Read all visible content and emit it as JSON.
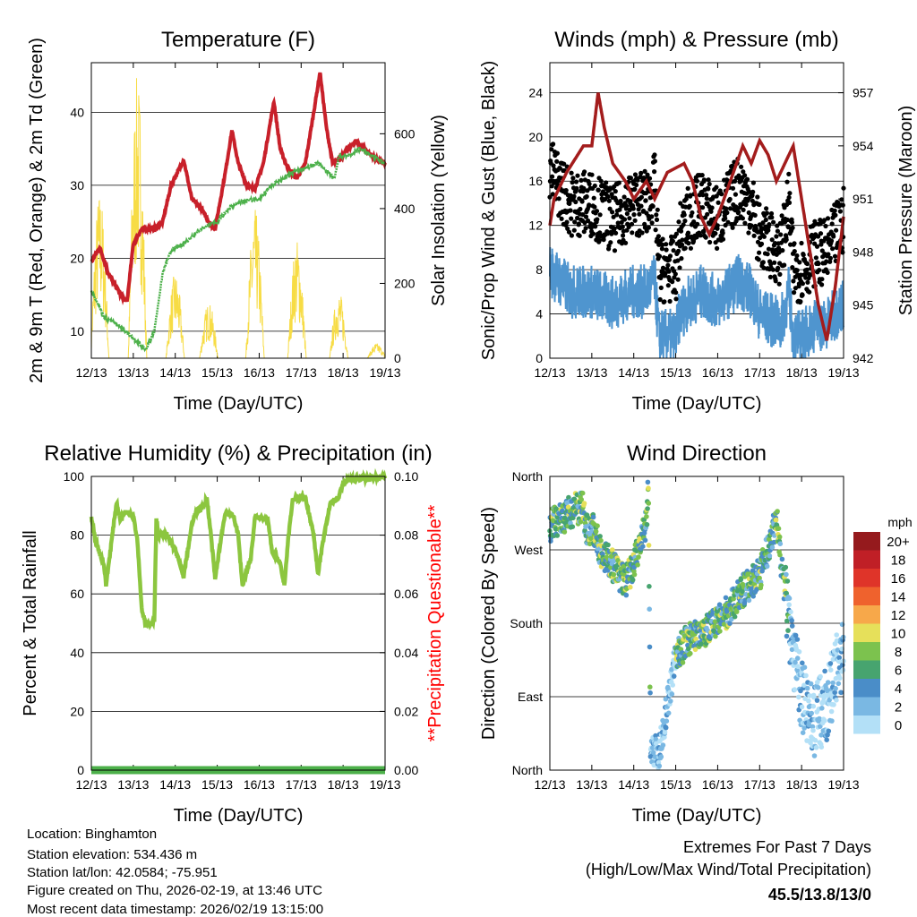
{
  "footer": {
    "location": "Location: Binghamton",
    "elevation": "Station elevation: 534.436 m",
    "latlon": "Station lat/lon: 42.0584; -75.951",
    "created": "Figure created on Thu, 2026-02-19, at 13:46 UTC",
    "recent": "Most recent data timestamp: 2026/02/19 13:15:00",
    "extremes_title": "Extremes For Past 7 Days",
    "extremes_sub": "(High/Low/Max Wind/Total Precipitation)",
    "extremes_value": "45.5/13.8/13/0",
    "extremes_color": "#c8202a"
  },
  "chart_data": [
    {
      "id": "temp",
      "type": "line",
      "title": "Temperature (F)",
      "xlabel": "Time (Day/UTC)",
      "ylabel": "2m & 9m T (Red, Orange) & 2m Td (Green)",
      "y2label": "Solar Insolation (Yellow)",
      "xticks": [
        "12/13",
        "13/13",
        "14/13",
        "15/13",
        "16/13",
        "17/13",
        "18/13",
        "19/13"
      ],
      "xlim": [
        0,
        7
      ],
      "ylim": [
        6.3,
        46.8
      ],
      "yticks": [
        10,
        20,
        30,
        40
      ],
      "y2lim": [
        0,
        790
      ],
      "y2ticks": [
        0,
        200,
        400,
        600
      ],
      "series": [
        {
          "name": "2m T",
          "color": "#c8202a",
          "points": [
            [
              0,
              19.5
            ],
            [
              0.2,
              21.5
            ],
            [
              0.4,
              18
            ],
            [
              0.7,
              15
            ],
            [
              0.85,
              14
            ],
            [
              1.0,
              22
            ],
            [
              1.2,
              24
            ],
            [
              1.5,
              24
            ],
            [
              1.7,
              25
            ],
            [
              1.9,
              30
            ],
            [
              2.2,
              33.5
            ],
            [
              2.4,
              28
            ],
            [
              2.6,
              27
            ],
            [
              2.8,
              25
            ],
            [
              2.95,
              24
            ],
            [
              3.2,
              32
            ],
            [
              3.35,
              37.5
            ],
            [
              3.5,
              33
            ],
            [
              3.7,
              30
            ],
            [
              3.9,
              29.5
            ],
            [
              4.1,
              33
            ],
            [
              4.35,
              41.5
            ],
            [
              4.5,
              35
            ],
            [
              4.7,
              32
            ],
            [
              4.9,
              31
            ],
            [
              5.1,
              33
            ],
            [
              5.3,
              40
            ],
            [
              5.45,
              45.5
            ],
            [
              5.6,
              38
            ],
            [
              5.75,
              33
            ],
            [
              5.9,
              33.5
            ],
            [
              6.1,
              35
            ],
            [
              6.3,
              36
            ],
            [
              6.5,
              35
            ],
            [
              6.8,
              33.5
            ],
            [
              7,
              33
            ]
          ]
        },
        {
          "name": "2m Td",
          "color": "#4cb04a",
          "points": [
            [
              0,
              15.5
            ],
            [
              0.3,
              12
            ],
            [
              0.6,
              11
            ],
            [
              0.8,
              10
            ],
            [
              1.0,
              9
            ],
            [
              1.3,
              7.5
            ],
            [
              1.5,
              10
            ],
            [
              1.7,
              18
            ],
            [
              1.9,
              21
            ],
            [
              2.2,
              22
            ],
            [
              2.4,
              23
            ],
            [
              2.6,
              24
            ],
            [
              3.0,
              25
            ],
            [
              3.3,
              27
            ],
            [
              3.7,
              28
            ],
            [
              4.0,
              28
            ],
            [
              4.3,
              30
            ],
            [
              4.6,
              31
            ],
            [
              4.9,
              32
            ],
            [
              5.2,
              32.5
            ],
            [
              5.4,
              33
            ],
            [
              5.6,
              32
            ],
            [
              5.8,
              31
            ],
            [
              5.9,
              34
            ],
            [
              6.1,
              34
            ],
            [
              6.4,
              35
            ],
            [
              6.7,
              34
            ],
            [
              7,
              33
            ]
          ]
        },
        {
          "name": "Solar",
          "color": "#f7dc45",
          "axis": "right",
          "peaks": [
            [
              0.2,
              450
            ],
            [
              1.1,
              760
            ],
            [
              2.0,
              230
            ],
            [
              2.8,
              150
            ],
            [
              3.9,
              400
            ],
            [
              4.9,
              320
            ],
            [
              5.9,
              180
            ],
            [
              6.8,
              40
            ]
          ]
        }
      ]
    },
    {
      "id": "wind",
      "type": "scatter",
      "title": "Winds (mph) & Pressure (mb)",
      "xlabel": "Time (Day/UTC)",
      "ylabel": "Sonic/Prop Wind & Gust (Blue, Black)",
      "y2label": "Station Pressure (Maroon)",
      "xticks": [
        "12/13",
        "13/13",
        "14/13",
        "15/13",
        "16/13",
        "17/13",
        "18/13",
        "19/13"
      ],
      "xlim": [
        0,
        7
      ],
      "ylim": [
        0,
        26.7
      ],
      "yticks": [
        0,
        4,
        8,
        12,
        16,
        20,
        24
      ],
      "y2lim": [
        942,
        958.7
      ],
      "y2ticks": [
        942,
        945,
        948,
        951,
        954,
        957
      ],
      "series": [
        {
          "name": "Sonic wind",
          "color": "#4f95cf",
          "points": [
            [
              0,
              8
            ],
            [
              0.5,
              6
            ],
            [
              1,
              6
            ],
            [
              1.5,
              5
            ],
            [
              2,
              6
            ],
            [
              2.3,
              6
            ],
            [
              2.5,
              7
            ],
            [
              2.6,
              2
            ],
            [
              3,
              2
            ],
            [
              3.1,
              4
            ],
            [
              3.3,
              5
            ],
            [
              3.6,
              6
            ],
            [
              4,
              5
            ],
            [
              4.5,
              7
            ],
            [
              4.8,
              6
            ],
            [
              5,
              4
            ],
            [
              5.5,
              3
            ],
            [
              5.7,
              6
            ],
            [
              5.8,
              2
            ],
            [
              6,
              2
            ],
            [
              6.3,
              3
            ],
            [
              6.6,
              3
            ],
            [
              7,
              5
            ]
          ]
        },
        {
          "name": "Gust",
          "color": "#000000"
        },
        {
          "name": "Pressure",
          "color": "#a31c1c",
          "axis": "right",
          "points": [
            [
              0,
              949.5
            ],
            [
              0.1,
              951
            ],
            [
              0.4,
              952.5
            ],
            [
              0.8,
              954
            ],
            [
              1.0,
              954
            ],
            [
              1.15,
              957
            ],
            [
              1.3,
              955
            ],
            [
              1.5,
              953
            ],
            [
              1.8,
              952
            ],
            [
              2.0,
              951
            ],
            [
              2.3,
              952
            ],
            [
              2.5,
              951
            ],
            [
              2.8,
              952.5
            ],
            [
              3.2,
              953
            ],
            [
              3.4,
              952
            ],
            [
              3.6,
              950
            ],
            [
              3.8,
              949
            ],
            [
              4.0,
              950
            ],
            [
              4.3,
              952
            ],
            [
              4.6,
              954
            ],
            [
              4.8,
              953
            ],
            [
              5.0,
              954.3
            ],
            [
              5.2,
              953.5
            ],
            [
              5.4,
              952
            ],
            [
              5.6,
              953
            ],
            [
              5.8,
              954
            ],
            [
              6.0,
              951
            ],
            [
              6.2,
              948
            ],
            [
              6.4,
              945
            ],
            [
              6.6,
              943
            ],
            [
              6.8,
              946
            ],
            [
              7,
              950
            ]
          ]
        }
      ]
    },
    {
      "id": "rh",
      "type": "line",
      "title": "Relative Humidity (%) & Precipitation (in)",
      "xlabel": "Time (Day/UTC)",
      "ylabel": "Percent & Total Rainfall",
      "y2label": "**Precipitation Questionable**",
      "y2label_color": "#ff0000",
      "xticks": [
        "12/13",
        "13/13",
        "14/13",
        "15/13",
        "16/13",
        "17/13",
        "18/13",
        "19/13"
      ],
      "xlim": [
        0,
        7
      ],
      "ylim": [
        0,
        100
      ],
      "yticks": [
        0,
        20,
        40,
        60,
        80,
        100
      ],
      "y2lim": [
        0,
        0.1
      ],
      "y2ticks": [
        "0.00",
        "0.02",
        "0.04",
        "0.06",
        "0.08",
        "0.10"
      ],
      "series": [
        {
          "name": "RH",
          "color": "#8cc63f",
          "points": [
            [
              0,
              86
            ],
            [
              0.1,
              78
            ],
            [
              0.3,
              70
            ],
            [
              0.35,
              63
            ],
            [
              0.5,
              80
            ],
            [
              0.6,
              91
            ],
            [
              0.7,
              85
            ],
            [
              0.8,
              88
            ],
            [
              1.0,
              87
            ],
            [
              1.1,
              78
            ],
            [
              1.2,
              55
            ],
            [
              1.3,
              49
            ],
            [
              1.5,
              51
            ],
            [
              1.55,
              85
            ],
            [
              1.6,
              80
            ],
            [
              1.8,
              80
            ],
            [
              2.0,
              75
            ],
            [
              2.2,
              66
            ],
            [
              2.3,
              75
            ],
            [
              2.4,
              84
            ],
            [
              2.5,
              88
            ],
            [
              2.7,
              90
            ],
            [
              2.75,
              93
            ],
            [
              2.85,
              80
            ],
            [
              2.95,
              65
            ],
            [
              3.1,
              80
            ],
            [
              3.2,
              88
            ],
            [
              3.4,
              86
            ],
            [
              3.5,
              80
            ],
            [
              3.6,
              63
            ],
            [
              3.8,
              72
            ],
            [
              3.9,
              86
            ],
            [
              4.2,
              86
            ],
            [
              4.3,
              75
            ],
            [
              4.5,
              70
            ],
            [
              4.6,
              63
            ],
            [
              4.7,
              80
            ],
            [
              4.8,
              92
            ],
            [
              5.1,
              93
            ],
            [
              5.3,
              80
            ],
            [
              5.4,
              67
            ],
            [
              5.55,
              80
            ],
            [
              5.7,
              91
            ],
            [
              5.9,
              93
            ],
            [
              6.0,
              98
            ],
            [
              6.2,
              99
            ],
            [
              7,
              100
            ]
          ]
        },
        {
          "name": "Precip",
          "color": "#4cb04a",
          "points": [
            [
              0,
              0
            ],
            [
              7,
              0
            ]
          ]
        }
      ]
    },
    {
      "id": "dir",
      "type": "scatter",
      "title": "Wind Direction",
      "xlabel": "Time (Day/UTC)",
      "ylabel": "Direction (Colored By Speed)",
      "xticks": [
        "12/13",
        "13/13",
        "14/13",
        "15/13",
        "16/13",
        "17/13",
        "18/13",
        "19/13"
      ],
      "xlim": [
        0,
        7
      ],
      "ylim": [
        0,
        360
      ],
      "yticks": [
        "North",
        "East",
        "South",
        "West",
        "North"
      ],
      "direction_points": [
        [
          0,
          300
        ],
        [
          0.3,
          310
        ],
        [
          0.6,
          320
        ],
        [
          0.8,
          320
        ],
        [
          0.9,
          290
        ],
        [
          1.0,
          300
        ],
        [
          1.2,
          270
        ],
        [
          1.5,
          250
        ],
        [
          1.8,
          230
        ],
        [
          2.0,
          250
        ],
        [
          2.1,
          270
        ],
        [
          2.3,
          300
        ],
        [
          2.35,
          350
        ],
        [
          2.4,
          30
        ],
        [
          2.6,
          20
        ],
        [
          2.8,
          80
        ],
        [
          3.0,
          140
        ],
        [
          3.3,
          160
        ],
        [
          3.6,
          170
        ],
        [
          4,
          180
        ],
        [
          4.3,
          200
        ],
        [
          4.6,
          220
        ],
        [
          5.0,
          240
        ],
        [
          5.2,
          270
        ],
        [
          5.4,
          310
        ],
        [
          5.5,
          260
        ],
        [
          5.7,
          180
        ],
        [
          5.8,
          150
        ],
        [
          6.0,
          90
        ],
        [
          6.3,
          60
        ],
        [
          6.6,
          80
        ],
        [
          7,
          150
        ]
      ],
      "legend": {
        "title": "mph",
        "labels": [
          "20+",
          "18",
          "16",
          "14",
          "12",
          "10",
          "8",
          "6",
          "4",
          "2",
          "0"
        ],
        "colors": [
          "#951a1d",
          "#c01f26",
          "#df3429",
          "#ef622d",
          "#f7a84a",
          "#e6e05a",
          "#7cc24e",
          "#47a46f",
          "#4a8dc8",
          "#7ab8e3",
          "#b3e0f7"
        ]
      }
    }
  ]
}
